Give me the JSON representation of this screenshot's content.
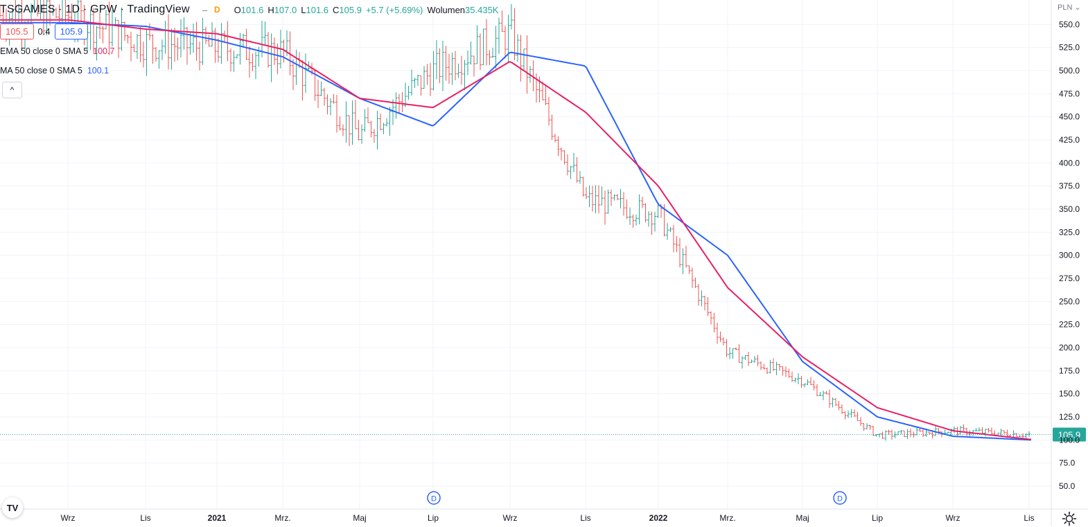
{
  "header": {
    "title": "TSGAMES · 1D · GPW · TradingView",
    "minimize_label": "‒",
    "flag_label": "D",
    "ohlc": {
      "open_key": "O",
      "open": "101.6",
      "high_key": "H",
      "high": "107.0",
      "low_key": "L",
      "low": "101.6",
      "close_key": "C",
      "close": "105.9",
      "change": "+5.7 (+5.69%)",
      "volume_key": "Wolumen",
      "volume": "35.435K"
    }
  },
  "price_row": {
    "bid": "105.5",
    "spread": "0.4",
    "ask": "105.9"
  },
  "indicators": [
    {
      "label": "EMA 50 close 0 SMA 5",
      "value": "100.7",
      "color": "#e91e63"
    },
    {
      "label": "MA 50 close 0 SMA 5",
      "value": "100.1",
      "color": "#2962ff"
    }
  ],
  "collapse_label": "^",
  "logo_label": "TV",
  "price_axis": {
    "currency": "PLN",
    "ticks": [
      "550.0",
      "525.0",
      "500.0",
      "475.0",
      "450.0",
      "425.0",
      "400.0",
      "375.0",
      "350.0",
      "325.0",
      "300.0",
      "275.0",
      "250.0",
      "225.0",
      "200.0",
      "175.0",
      "150.0",
      "125.0",
      "100.0",
      "75.0",
      "50.0"
    ],
    "last_price_label": "105.9"
  },
  "colors": {
    "up": "#26a69a",
    "down": "#ef5350",
    "ema": "#e91e63",
    "ma": "#2962ff",
    "last_price": "#26a69a",
    "grid": "#f0f3fa",
    "dividend": "#2962ff"
  },
  "chart_data": {
    "type": "line",
    "title": "TSGAMES · 1D · GPW",
    "x_axis_labels": [
      "Wrz",
      "Lis",
      "2021",
      "Mrz.",
      "Maj",
      "Lip",
      "Wrz",
      "Lis",
      "2022",
      "Mrz.",
      "Maj",
      "Lip",
      "Wrz",
      "Lis"
    ],
    "y_axis_ticks": [
      550,
      525,
      500,
      475,
      450,
      425,
      400,
      375,
      350,
      325,
      300,
      275,
      250,
      225,
      200,
      175,
      150,
      125,
      100,
      75,
      50
    ],
    "ylim": [
      50,
      556
    ],
    "y_unit": "PLN",
    "dividend_markers": [
      {
        "label": "D",
        "near": "Lip 2021"
      },
      {
        "label": "D",
        "near": "Maj/Lip 2022"
      }
    ],
    "series": [
      {
        "name": "Price (OHLC bars, approximated)",
        "style": "ohlc",
        "x": [
          "Wrz",
          "Lis",
          "2021",
          "Mrz.",
          "Maj",
          "Lip",
          "Wrz",
          "Lis",
          "2022",
          "Mrz.",
          "Maj",
          "Lip",
          "Wrz",
          "Lis"
        ],
        "values": [
          560,
          530,
          525,
          520,
          430,
          500,
          540,
          360,
          345,
          195,
          165,
          105,
          110,
          105.9
        ]
      },
      {
        "name": "EMA 50 close 0 SMA 5",
        "style": "line",
        "x": [
          "Wrz",
          "Lis",
          "2021",
          "Mrz.",
          "Maj",
          "Lip",
          "Wrz",
          "Lis",
          "2022",
          "Mrz.",
          "Maj",
          "Lip",
          "Wrz",
          "Lis"
        ],
        "values": [
          555,
          545,
          540,
          523,
          470,
          460,
          510,
          455,
          375,
          265,
          190,
          135,
          110,
          100.7
        ]
      },
      {
        "name": "MA 50 close 0 SMA 5",
        "style": "line",
        "x": [
          "Wrz",
          "Lis",
          "2021",
          "Mrz.",
          "Maj",
          "Lip",
          "Wrz",
          "Lis",
          "2022",
          "Mrz.",
          "Maj",
          "Lip",
          "Wrz",
          "Lis"
        ],
        "values": [
          552,
          548,
          533,
          515,
          470,
          440,
          520,
          505,
          355,
          300,
          185,
          125,
          104,
          100.1
        ]
      }
    ],
    "last_price": 105.9,
    "grid": true
  }
}
